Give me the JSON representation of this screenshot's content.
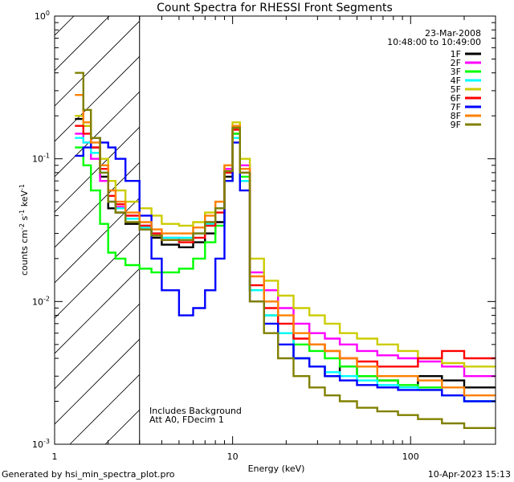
{
  "chart_data": {
    "type": "line",
    "title": "Count Spectra for RHESSI Front Segments",
    "xlabel": "Energy (keV)",
    "ylabel_parts": [
      "counts cm",
      "-2",
      " s",
      "-1",
      " keV",
      "-1"
    ],
    "xscale": "log",
    "yscale": "log",
    "xlim": [
      1,
      300
    ],
    "ylim": [
      0.001,
      1
    ],
    "x_ticks": [
      {
        "value": 1,
        "label": "1"
      },
      {
        "value": 10,
        "label": "10"
      },
      {
        "value": 100,
        "label": "100"
      }
    ],
    "y_ticks": [
      {
        "value": 0.001,
        "base": "10",
        "exp": "-3"
      },
      {
        "value": 0.01,
        "base": "10",
        "exp": "-2"
      },
      {
        "value": 0.1,
        "base": "10",
        "exp": "-1"
      },
      {
        "value": 1,
        "base": "10",
        "exp": "0"
      }
    ],
    "hatched_region_kev": [
      1,
      3
    ],
    "date": "23-Mar-2008",
    "time_range": "10:48:00 to 10:49:00",
    "annotations": [
      "Includes Background",
      "Att A0, FDecim 1"
    ],
    "legend_position": "top-right",
    "series": [
      {
        "name": "1F",
        "color": "#000000",
        "values": [
          0.19,
          0.17,
          0.12,
          0.075,
          0.045,
          0.042,
          0.035,
          0.032,
          0.028,
          0.025,
          0.024,
          0.026,
          0.03,
          0.036,
          0.075,
          0.15,
          0.07,
          0.012,
          0.008,
          0.006,
          0.004,
          0.0035,
          0.003,
          0.0035,
          0.003,
          0.0028,
          0.0025,
          0.003,
          0.0028,
          0.0025
        ]
      },
      {
        "name": "2F",
        "color": "#ff00ff",
        "values": [
          0.15,
          0.13,
          0.1,
          0.07,
          0.05,
          0.046,
          0.04,
          0.034,
          0.03,
          0.028,
          0.027,
          0.03,
          0.036,
          0.045,
          0.085,
          0.16,
          0.09,
          0.016,
          0.012,
          0.009,
          0.007,
          0.006,
          0.0055,
          0.005,
          0.0045,
          0.0042,
          0.004,
          0.0038,
          0.0035,
          0.003
        ]
      },
      {
        "name": "3F",
        "color": "#00ff00",
        "values": [
          0.12,
          0.09,
          0.06,
          0.035,
          0.022,
          0.02,
          0.018,
          0.017,
          0.016,
          0.016,
          0.017,
          0.02,
          0.026,
          0.034,
          0.07,
          0.15,
          0.075,
          0.012,
          0.008,
          0.006,
          0.005,
          0.0045,
          0.004,
          0.0035,
          0.003,
          0.0028,
          0.0026,
          0.0025,
          0.0022,
          0.002
        ]
      },
      {
        "name": "4F",
        "color": "#00ffff",
        "values": [
          0.14,
          0.13,
          0.11,
          0.08,
          0.05,
          0.045,
          0.038,
          0.033,
          0.03,
          0.028,
          0.028,
          0.03,
          0.035,
          0.045,
          0.08,
          0.14,
          0.07,
          0.012,
          0.008,
          0.006,
          0.004,
          0.0035,
          0.0032,
          0.003,
          0.0028,
          0.0026,
          0.0025,
          0.0024,
          0.0022,
          0.002
        ]
      },
      {
        "name": "5F",
        "color": "#cccc00",
        "values": [
          0.2,
          0.17,
          0.14,
          0.1,
          0.07,
          0.06,
          0.05,
          0.045,
          0.04,
          0.035,
          0.034,
          0.036,
          0.042,
          0.05,
          0.09,
          0.18,
          0.1,
          0.02,
          0.014,
          0.011,
          0.009,
          0.008,
          0.007,
          0.006,
          0.0055,
          0.005,
          0.0045,
          0.004,
          0.0037,
          0.0035
        ]
      },
      {
        "name": "6F",
        "color": "#ff0000",
        "values": [
          0.17,
          0.15,
          0.12,
          0.085,
          0.055,
          0.048,
          0.04,
          0.034,
          0.03,
          0.027,
          0.026,
          0.028,
          0.034,
          0.042,
          0.08,
          0.16,
          0.08,
          0.013,
          0.009,
          0.007,
          0.0055,
          0.005,
          0.0045,
          0.004,
          0.0038,
          0.0035,
          0.0035,
          0.004,
          0.0045,
          0.004
        ]
      },
      {
        "name": "7F",
        "color": "#0000ff",
        "values": [
          0.105,
          0.12,
          0.14,
          0.13,
          0.12,
          0.1,
          0.07,
          0.04,
          0.02,
          0.012,
          0.008,
          0.009,
          0.012,
          0.02,
          0.07,
          0.13,
          0.06,
          0.01,
          0.007,
          0.005,
          0.004,
          0.0035,
          0.003,
          0.0028,
          0.0026,
          0.0025,
          0.0024,
          0.0024,
          0.0022,
          0.002
        ]
      },
      {
        "name": "8F",
        "color": "#ff8000",
        "values": [
          0.28,
          0.18,
          0.13,
          0.09,
          0.06,
          0.05,
          0.042,
          0.036,
          0.032,
          0.03,
          0.03,
          0.033,
          0.04,
          0.05,
          0.09,
          0.17,
          0.085,
          0.015,
          0.01,
          0.008,
          0.006,
          0.005,
          0.0045,
          0.004,
          0.0035,
          0.003,
          0.003,
          0.0028,
          0.0025,
          0.0022
        ]
      },
      {
        "name": "9F",
        "color": "#808000",
        "values": [
          0.4,
          0.22,
          0.14,
          0.08,
          0.05,
          0.042,
          0.036,
          0.032,
          0.029,
          0.027,
          0.027,
          0.03,
          0.036,
          0.045,
          0.082,
          0.165,
          0.08,
          0.01,
          0.006,
          0.004,
          0.003,
          0.0025,
          0.0022,
          0.002,
          0.0018,
          0.0017,
          0.0016,
          0.0015,
          0.0014,
          0.0013
        ]
      }
    ],
    "energy_bins_kev": [
      1.3,
      1.45,
      1.6,
      1.8,
      2.0,
      2.2,
      2.5,
      3.0,
      3.5,
      4.0,
      5.0,
      6.0,
      7.0,
      8.0,
      9.0,
      10.0,
      11.0,
      12.5,
      15.0,
      18.0,
      22.0,
      27.0,
      33.0,
      40.0,
      50.0,
      65.0,
      85.0,
      110.0,
      150.0,
      200.0
    ]
  },
  "footer": {
    "left": "Generated by hsi_min_spectra_plot.pro",
    "right": "10-Apr-2023 15:13"
  }
}
